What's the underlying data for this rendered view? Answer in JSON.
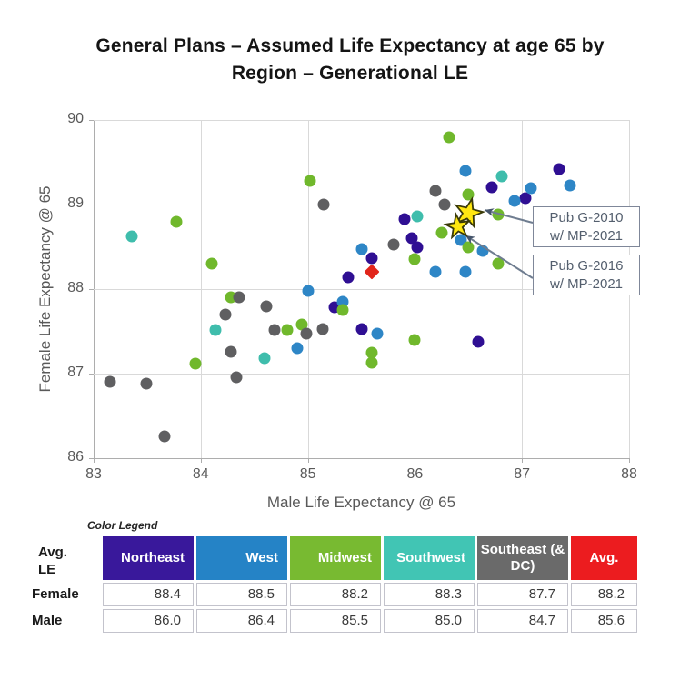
{
  "title": {
    "line1": "General Plans – Assumed Life Expectancy at age 65 by",
    "line2": "Region – Generational LE"
  },
  "chart_data": {
    "type": "scatter",
    "title": "General Plans – Assumed Life Expectancy at age 65 by Region – Generational LE",
    "xlabel": "Male Life Expectancy @ 65",
    "ylabel": "Female Life Expectancy @ 65",
    "xlim": [
      83,
      88
    ],
    "ylim": [
      86,
      90
    ],
    "xticks": [
      83,
      84,
      85,
      86,
      87,
      88
    ],
    "yticks": [
      86,
      87,
      88,
      89,
      90
    ],
    "grid": true,
    "series": [
      {
        "name": "Northeast",
        "color": "#2f0f93",
        "marker": "circle",
        "points": [
          [
            85.25,
            87.78
          ],
          [
            85.38,
            88.14
          ],
          [
            85.5,
            87.53
          ],
          [
            85.6,
            88.37
          ],
          [
            85.9,
            88.83
          ],
          [
            85.97,
            88.6
          ],
          [
            86.02,
            88.5
          ],
          [
            86.59,
            87.38
          ],
          [
            86.72,
            89.2
          ],
          [
            87.03,
            89.08
          ],
          [
            87.35,
            89.42
          ]
        ]
      },
      {
        "name": "West",
        "color": "#2e86c6",
        "marker": "circle",
        "points": [
          [
            84.9,
            87.3
          ],
          [
            85.0,
            87.98
          ],
          [
            85.33,
            87.85
          ],
          [
            85.5,
            88.47
          ],
          [
            85.65,
            87.47
          ],
          [
            86.19,
            88.2
          ],
          [
            86.43,
            88.58
          ],
          [
            86.47,
            88.2
          ],
          [
            86.47,
            89.4
          ],
          [
            86.63,
            88.45
          ],
          [
            86.93,
            89.04
          ],
          [
            87.08,
            89.19
          ],
          [
            87.45,
            89.23
          ]
        ]
      },
      {
        "name": "Midwest",
        "color": "#70b82c",
        "marker": "circle",
        "points": [
          [
            83.77,
            88.8
          ],
          [
            83.95,
            87.12
          ],
          [
            84.1,
            88.3
          ],
          [
            84.28,
            87.9
          ],
          [
            84.81,
            87.52
          ],
          [
            84.94,
            87.58
          ],
          [
            85.02,
            89.28
          ],
          [
            85.33,
            87.75
          ],
          [
            85.6,
            87.25
          ],
          [
            85.6,
            87.13
          ],
          [
            86.0,
            87.4
          ],
          [
            86.0,
            88.35
          ],
          [
            86.25,
            88.67
          ],
          [
            86.32,
            89.8
          ],
          [
            86.5,
            88.5
          ],
          [
            86.5,
            89.12
          ],
          [
            86.78,
            88.88
          ],
          [
            86.78,
            88.3
          ]
        ]
      },
      {
        "name": "Southwest",
        "color": "#3fbdac",
        "marker": "circle",
        "points": [
          [
            83.36,
            88.62
          ],
          [
            84.14,
            87.52
          ],
          [
            84.6,
            87.18
          ],
          [
            86.02,
            88.86
          ],
          [
            86.81,
            89.33
          ]
        ]
      },
      {
        "name": "Southeast (& DC)",
        "color": "#5f5f61",
        "marker": "circle",
        "points": [
          [
            83.15,
            86.9
          ],
          [
            83.49,
            86.88
          ],
          [
            83.66,
            86.26
          ],
          [
            84.23,
            87.7
          ],
          [
            84.28,
            87.26
          ],
          [
            84.33,
            86.96
          ],
          [
            84.36,
            87.9
          ],
          [
            84.61,
            87.8
          ],
          [
            84.69,
            87.52
          ],
          [
            84.99,
            87.47
          ],
          [
            85.14,
            87.53
          ],
          [
            85.15,
            89.0
          ],
          [
            85.8,
            88.53
          ],
          [
            86.19,
            89.16
          ],
          [
            86.28,
            89.0
          ]
        ]
      },
      {
        "name": "Avg.",
        "color": "#e1251b",
        "marker": "diamond",
        "points": [
          [
            85.6,
            88.2
          ]
        ]
      }
    ],
    "stars": [
      {
        "name": "Pub G-2010 w/ MP-2021",
        "x": 86.5,
        "y": 88.9,
        "size": 32,
        "rotation": 14
      },
      {
        "name": "Pub G-2016 w/ MP-2021",
        "x": 86.4,
        "y": 88.74,
        "size": 27,
        "rotation": -8
      }
    ],
    "star_style": {
      "fill": "#ffe711",
      "stroke": "#3a3a08"
    },
    "annotations": [
      {
        "line1": "Pub G-2010",
        "line2": "w/ MP-2021"
      },
      {
        "line1": "Pub G-2016",
        "line2": "w/ MP-2021"
      }
    ],
    "arrow_color": "#6f7d90"
  },
  "table": {
    "legend_title": "Color Legend",
    "corner_label_line1": "Avg.",
    "corner_label_line2": "LE",
    "columns": [
      {
        "label": "Northeast",
        "color": "#39189b"
      },
      {
        "label": "West",
        "color": "#2583c6"
      },
      {
        "label": "Midwest",
        "color": "#78ba31"
      },
      {
        "label": "Southwest",
        "color": "#41c5b4"
      },
      {
        "label": "Southeast (& DC)",
        "color": "#6a6a6a"
      },
      {
        "label": "Avg.",
        "color": "#ec1c1f"
      }
    ],
    "rows": [
      {
        "label": "Female",
        "values": [
          "88.4",
          "88.5",
          "88.2",
          "88.3",
          "87.7",
          "88.2"
        ]
      },
      {
        "label": "Male",
        "values": [
          "86.0",
          "86.4",
          "85.5",
          "85.0",
          "84.7",
          "85.6"
        ]
      }
    ]
  }
}
